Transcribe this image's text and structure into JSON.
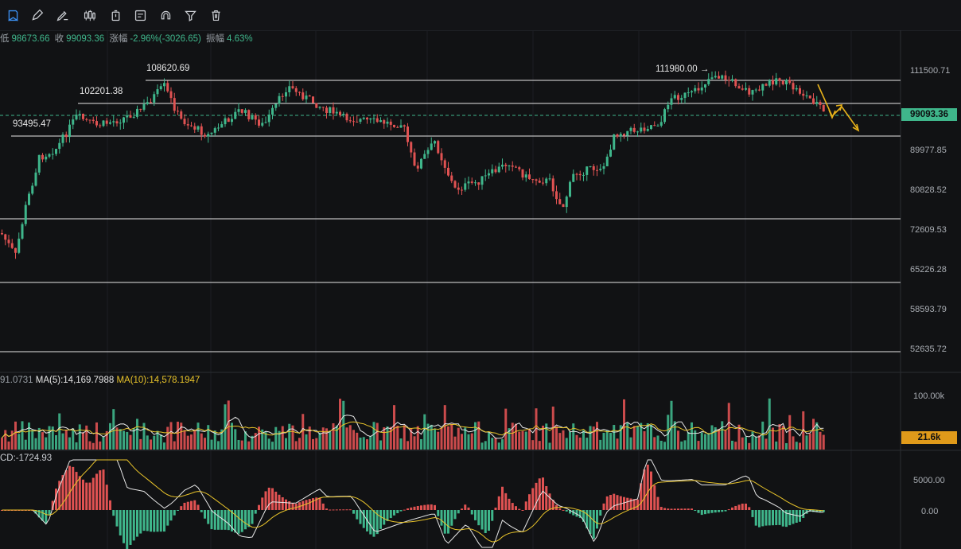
{
  "toolbar": {
    "tools": [
      {
        "name": "bookmark-icon",
        "active": true
      },
      {
        "name": "pencil-icon"
      },
      {
        "name": "brush-icon"
      },
      {
        "name": "candlestick-icon"
      },
      {
        "name": "stopwatch-icon"
      },
      {
        "name": "note-icon"
      },
      {
        "name": "magnet-icon"
      },
      {
        "name": "filter-icon"
      },
      {
        "name": "trash-icon"
      }
    ]
  },
  "ohlc": {
    "low_label": "低",
    "low_value": "98673.66",
    "close_label": "收",
    "close_value": "99093.36",
    "change_label": "涨幅",
    "change_value": "-2.96%(-3026.65)",
    "amplitude_label": "振幅",
    "amplitude_value": "4.63%"
  },
  "price_axis": {
    "ticks": [
      "111500.71",
      "99093.36",
      "89977.85",
      "80828.52",
      "72609.53",
      "65226.28",
      "58593.79",
      "52635.72"
    ],
    "current_price": "99093.36",
    "current_price_color": "#3fb68b"
  },
  "price_levels": [
    {
      "label": "108620.69"
    },
    {
      "label": "102201.38"
    },
    {
      "label": "93495.47"
    },
    {
      "label": "111980.00 →"
    }
  ],
  "volume": {
    "prefix": "91.0731",
    "ma5": "MA(5):14,169.7988",
    "ma10": "MA(10):14,578.1947",
    "axis_top": "100.00k",
    "current": "21.6k",
    "current_color": "#e09a1a"
  },
  "macd": {
    "label": "CD:-1724.93",
    "axis_top": "5000.00",
    "axis_zero": "0.00"
  },
  "colors": {
    "up": "#3fb68b",
    "down": "#e05252",
    "ma_white": "#e6e6e6",
    "ma_yellow": "#e8c32a",
    "arrow": "#e8b21a"
  },
  "chart_data": {
    "type": "candlestick",
    "price_range": [
      52000,
      116000
    ],
    "resistance_lines": [
      111500,
      102201,
      99093,
      93495,
      72609,
      65226,
      58593,
      52635
    ],
    "annotated_highs": [
      108620.69,
      102201.38,
      93495.47,
      111980.0
    ],
    "last_close": 99093.36
  }
}
